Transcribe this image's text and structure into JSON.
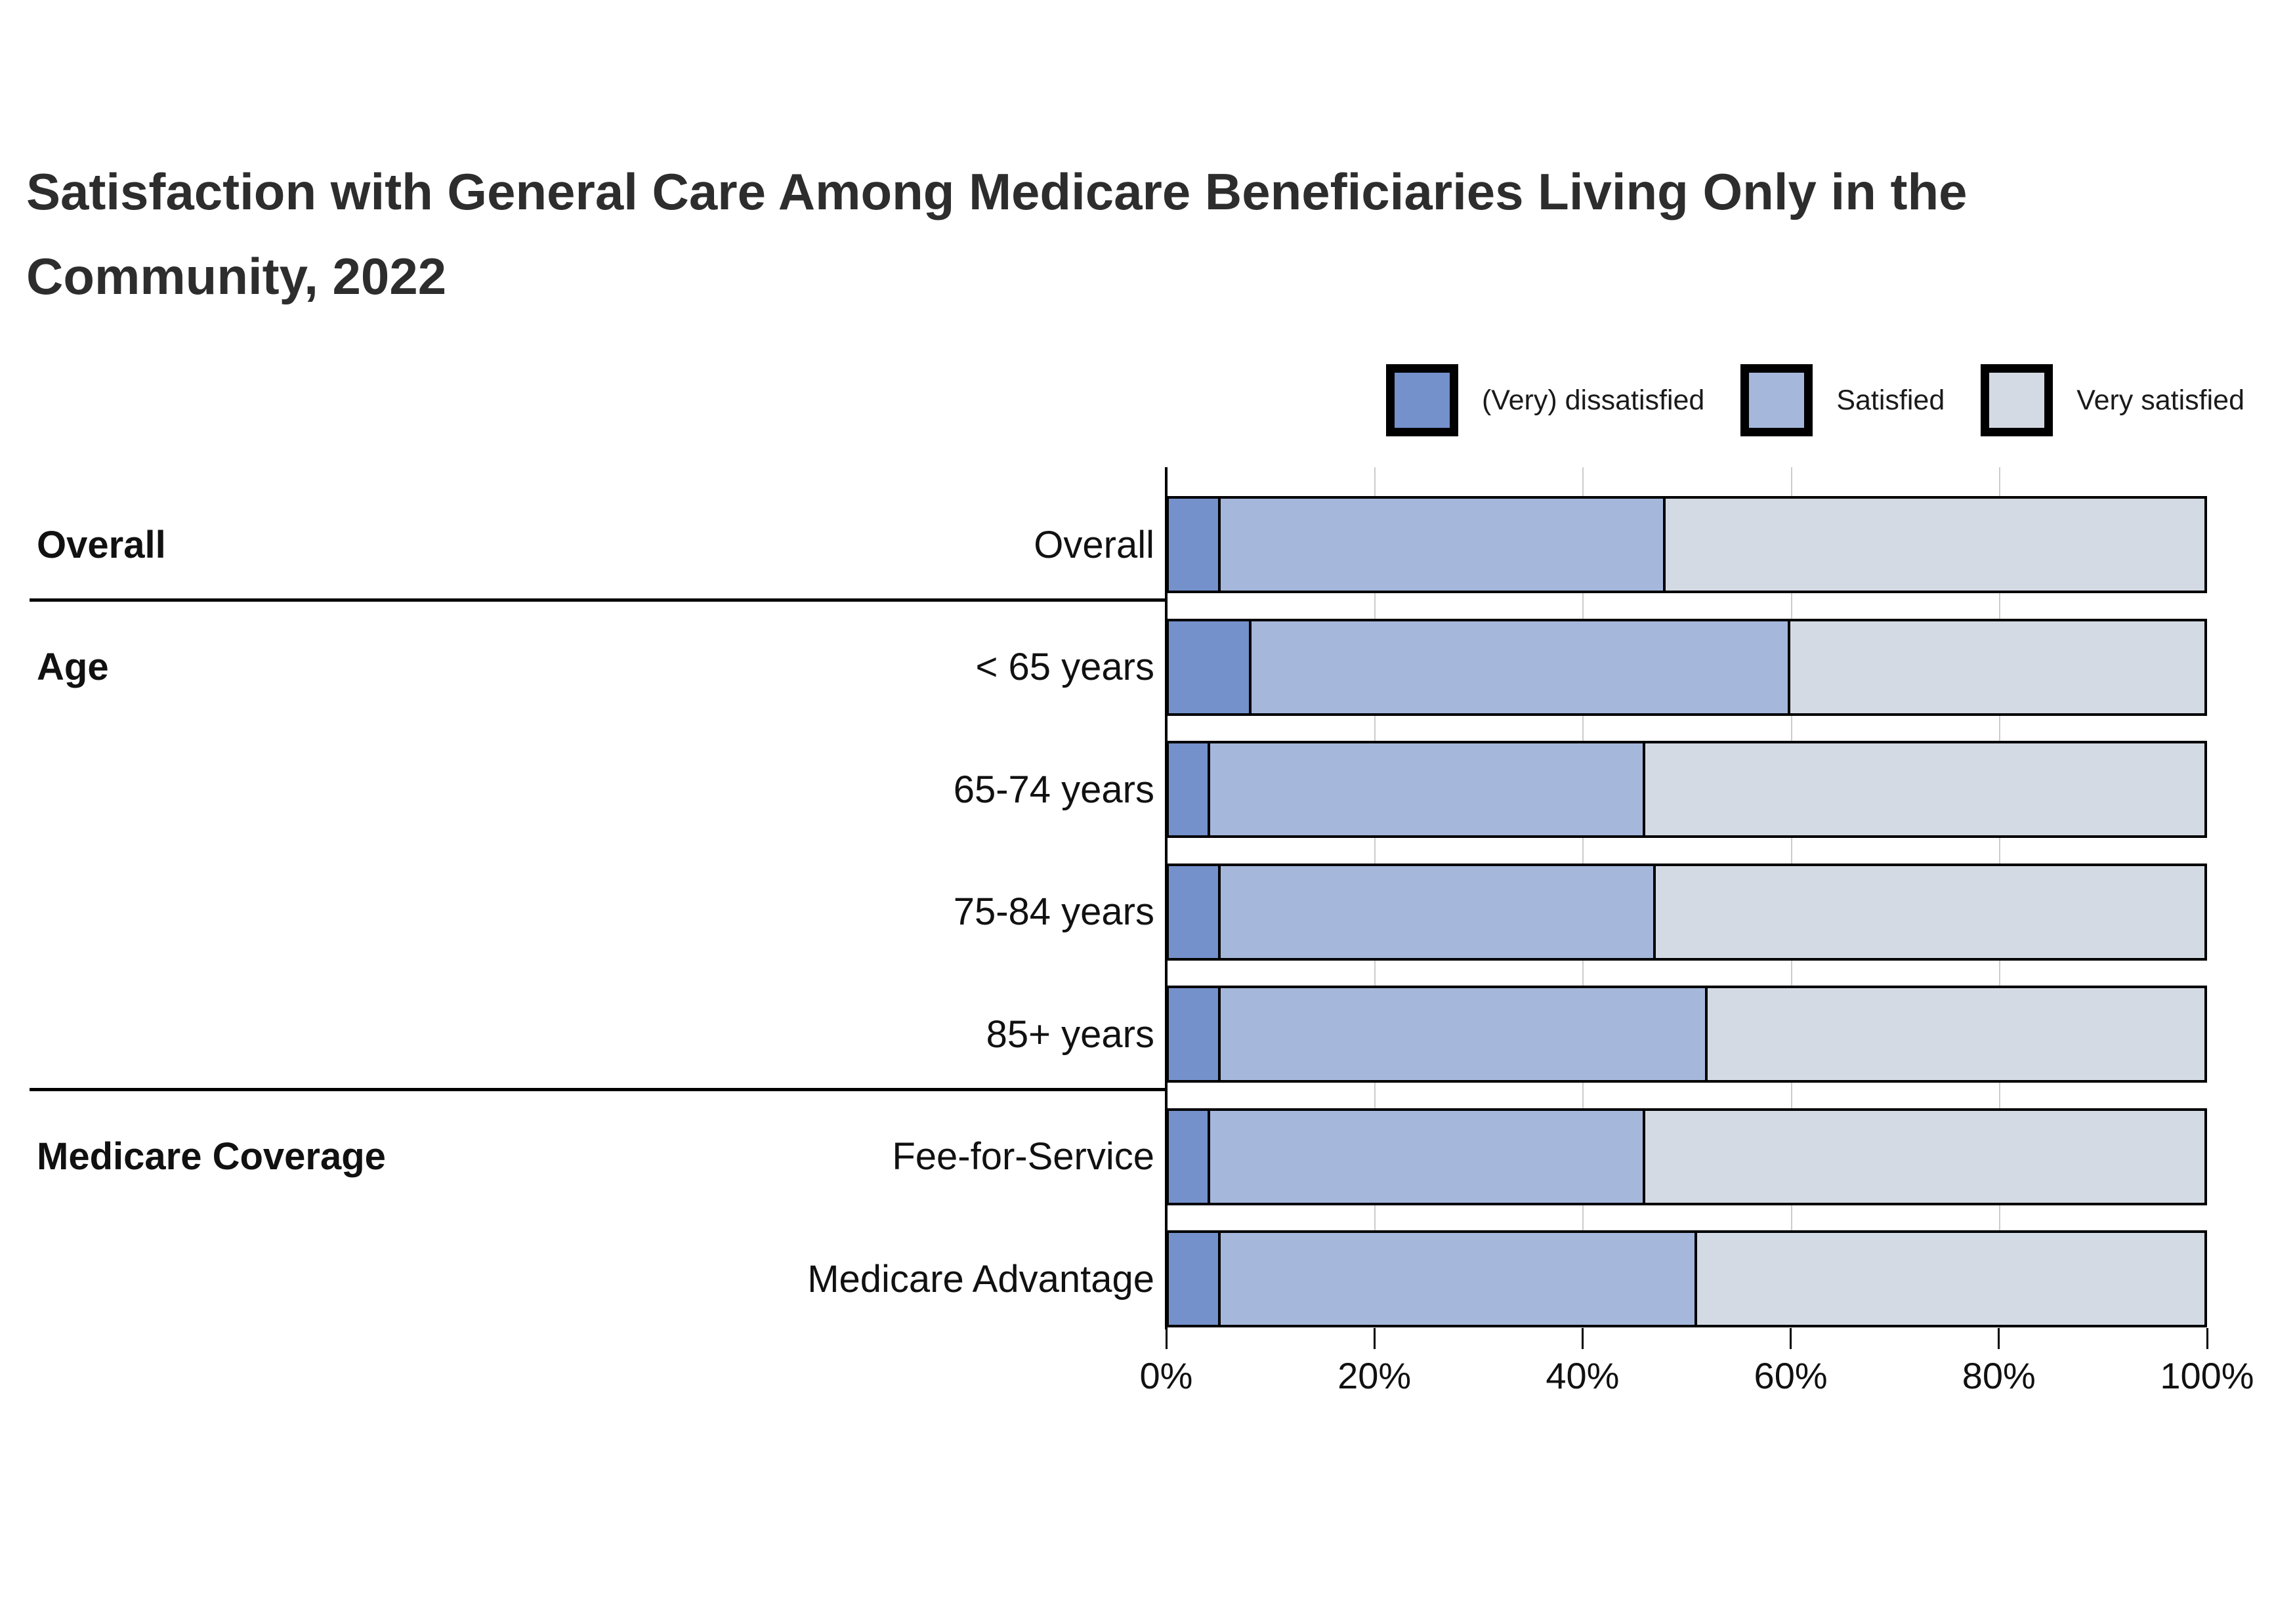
{
  "title_display": "Satisfaction with General Care Among Medicare Beneficiaries Living Only in the\nCommunity, 2022",
  "legend": [
    {
      "label": "(Very) dissatisfied",
      "color": "#7491CB"
    },
    {
      "label": "Satisfied",
      "color": "#A5B7DB"
    },
    {
      "label": "Very satisfied",
      "color": "#D3DAE4"
    }
  ],
  "colors": {
    "dissatisfied": "#7491CB",
    "satisfied": "#A5B7DB",
    "very_satisfied": "#D3DAE4",
    "bar_border": "#000000",
    "gridline": "#cccccc",
    "title_text": "#2d2d2d"
  },
  "chart_data": {
    "type": "bar",
    "stacked": true,
    "orientation": "horizontal",
    "title": "Satisfaction with General Care Among Medicare Beneficiaries Living Only in the Community, 2022",
    "xlabel": "",
    "ylabel": "",
    "xlim": [
      0,
      100
    ],
    "x_ticks": [
      "0%",
      "20%",
      "40%",
      "60%",
      "80%",
      "100%"
    ],
    "grid": "vertical",
    "legend_position": "top-right",
    "series_names": [
      "(Very) dissatisfied",
      "Satisfied",
      "Very satisfied"
    ],
    "sections": [
      {
        "label": "Overall",
        "rows": [
          {
            "label": "Overall",
            "values": [
              5,
              43,
              52
            ]
          }
        ]
      },
      {
        "label": "Age",
        "rows": [
          {
            "label": "< 65 years",
            "values": [
              8,
              52,
              40
            ]
          },
          {
            "label": "65-74 years",
            "values": [
              4,
              42,
              54
            ]
          },
          {
            "label": "75-84 years",
            "values": [
              5,
              42,
              53
            ]
          },
          {
            "label": "85+ years",
            "values": [
              5,
              47,
              48
            ]
          }
        ]
      },
      {
        "label": "Medicare Coverage",
        "rows": [
          {
            "label": "Fee-for-Service",
            "values": [
              4,
              42,
              54
            ]
          },
          {
            "label": "Medicare Advantage",
            "values": [
              5,
              46,
              49
            ]
          }
        ]
      }
    ]
  }
}
